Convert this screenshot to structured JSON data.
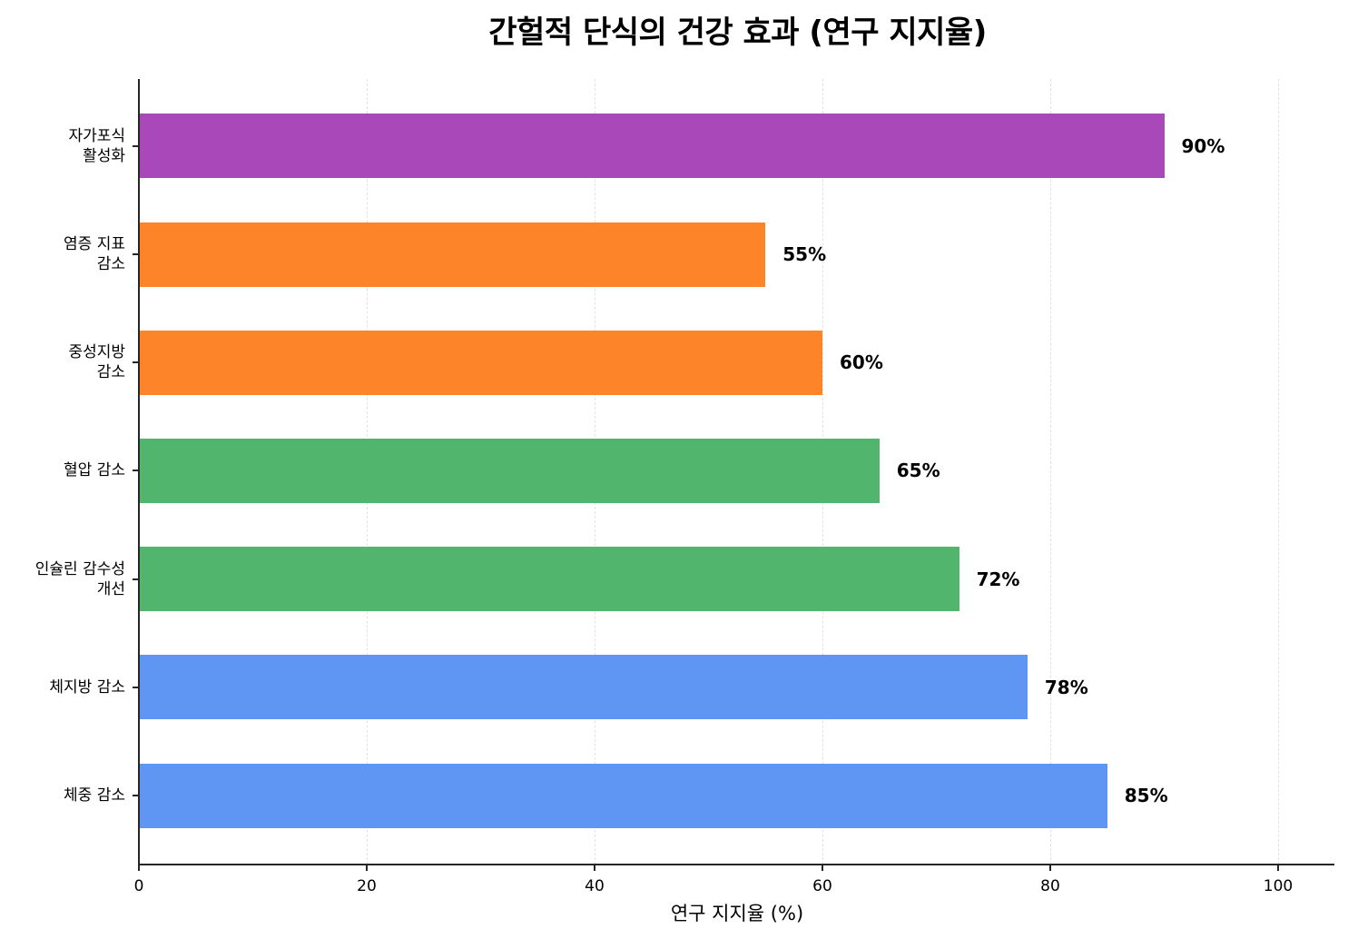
{
  "chart_data": {
    "type": "bar",
    "orientation": "horizontal",
    "title": "간헐적 단식의 건강 효과 (연구 지지율)",
    "xlabel": "연구 지지율 (%)",
    "ylabel": "",
    "xlim": [
      0,
      105
    ],
    "xticks": [
      0,
      20,
      40,
      60,
      80,
      100
    ],
    "grid": "x, dashed",
    "categories": [
      "체중 감소",
      "체지방 감소",
      "인슐린 감수성\n개선",
      "혈압 감소",
      "중성지방\n감소",
      "염증 지표\n감소",
      "자가포식\n활성화"
    ],
    "values": [
      85,
      78,
      72,
      65,
      60,
      55,
      90
    ],
    "value_labels": [
      "85%",
      "78%",
      "72%",
      "65%",
      "60%",
      "55%",
      "90%"
    ],
    "colors": [
      "#5f96f3",
      "#5f96f3",
      "#52b56e",
      "#52b56e",
      "#fd8428",
      "#fd8428",
      "#a948b8"
    ]
  },
  "axis": {
    "xtick_labels": [
      "0",
      "20",
      "40",
      "60",
      "80",
      "100"
    ]
  }
}
